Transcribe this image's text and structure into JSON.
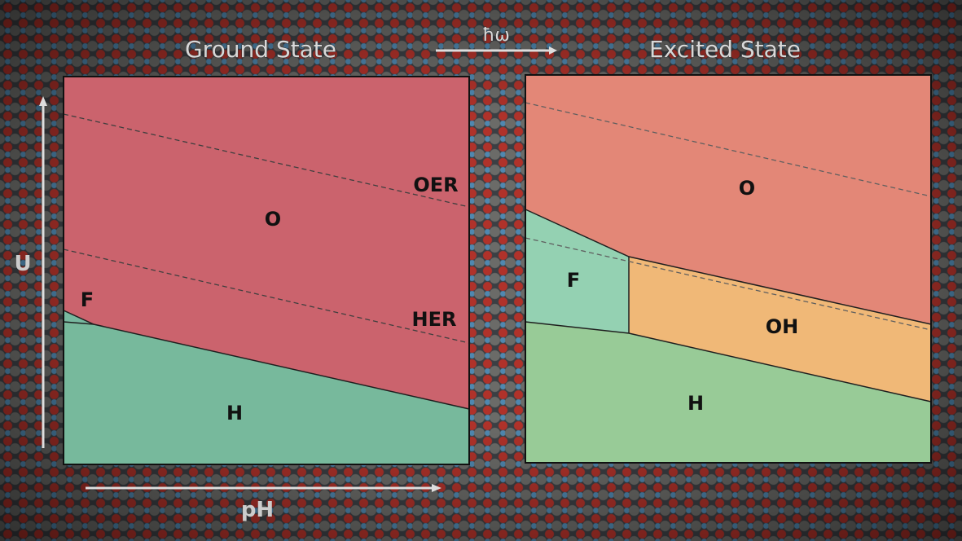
{
  "titles": {
    "ground": "Ground State",
    "excited": "Excited State",
    "photon": "ħω"
  },
  "axes": {
    "y": "U",
    "x": "pH"
  },
  "ground": {
    "labels": {
      "oer": "OER",
      "her": "HER",
      "o": "O",
      "f": "F",
      "h": "H"
    }
  },
  "excited": {
    "labels": {
      "o": "O",
      "f": "F",
      "oh": "OH",
      "h": "H"
    }
  },
  "colors": {
    "o_ground": "#c85a64",
    "f_ground": "#6fb49a",
    "h_ground": "#6fb596",
    "o_excited": "#e2806f",
    "f_excited": "#8ecfae",
    "oh_excited": "#f0b46f",
    "h_excited": "#92c891"
  }
}
